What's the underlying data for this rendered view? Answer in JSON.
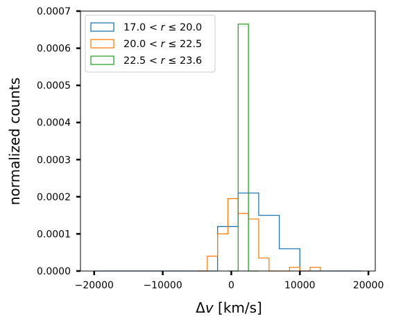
{
  "chart_data": {
    "type": "histogram",
    "xlabel": "Δv [km/s]",
    "ylabel": "normalized counts",
    "xlim": [
      -22000,
      21000
    ],
    "ylim": [
      0,
      0.0007
    ],
    "xticks": [
      -20000,
      -10000,
      0,
      10000,
      20000
    ],
    "xtick_labels": [
      "−20000",
      "−10000",
      "0",
      "10000",
      "20000"
    ],
    "yticks": [
      0,
      0.0001,
      0.0002,
      0.0003,
      0.0004,
      0.0005,
      0.0006,
      0.0007
    ],
    "ytick_labels": [
      "0.0000",
      "0.0001",
      "0.0002",
      "0.0003",
      "0.0004",
      "0.0005",
      "0.0006",
      "0.0007"
    ],
    "grid": false,
    "legend_position": "top-left",
    "series": [
      {
        "name": "17.0 < r ≤ 20.0",
        "color": "#1f77b4",
        "bin_edges": [
          -20000,
          -17000,
          -14000,
          -11000,
          -8000,
          -5000,
          -2000,
          1000,
          4000,
          7000,
          10000,
          13000,
          16000,
          19000
        ],
        "values": [
          0,
          0,
          0,
          0,
          0,
          0,
          0.00012,
          0.00021,
          0.00015,
          6e-05,
          0,
          0,
          0
        ]
      },
      {
        "name": "20.0 < r ≤ 22.5",
        "color": "#ff7f0e",
        "bin_edges": [
          -5000,
          -3500,
          -2000,
          -500,
          1000,
          2500,
          4000,
          5500,
          7000,
          8500,
          10000,
          11500,
          13000
        ],
        "values": [
          0,
          4e-05,
          0.0001,
          0.000195,
          0.000155,
          0.00014,
          3.5e-05,
          0,
          0,
          1e-05,
          0,
          1e-05
        ]
      },
      {
        "name": "22.5 < r ≤ 23.6",
        "color": "#2ca02c",
        "bin_edges": [
          -500,
          1000,
          2500,
          4000
        ],
        "values": [
          0,
          0.000665,
          0
        ]
      }
    ],
    "legend_labels": [
      {
        "pre": "17.0",
        "post": "20.0"
      },
      {
        "pre": "20.0",
        "post": "22.5"
      },
      {
        "pre": "22.5",
        "post": "23.6"
      }
    ]
  }
}
